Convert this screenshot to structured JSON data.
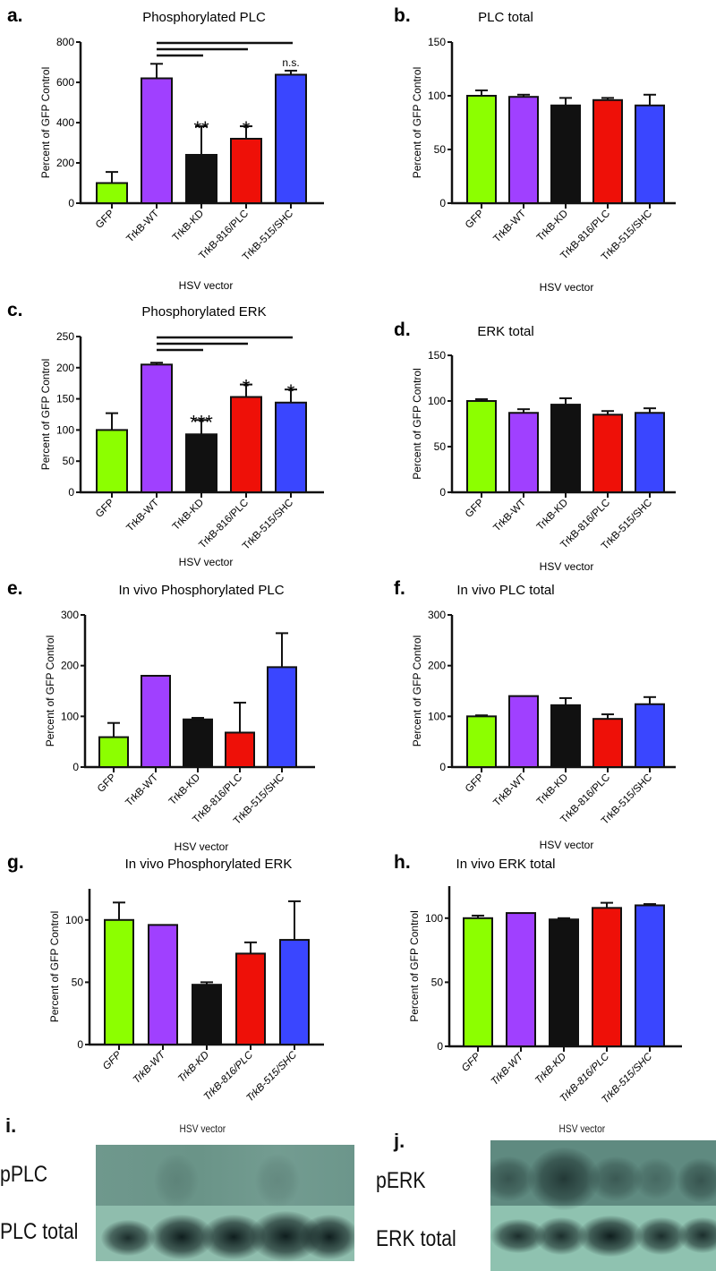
{
  "colors": {
    "GFP": "#8cff00",
    "TrkB-WT": "#a040ff",
    "TrkB-KD": "#111111",
    "TrkB-816/PLC": "#ee1008",
    "TrkB-515/SHC": "#3a46ff"
  },
  "chart_data": [
    {
      "id": "a",
      "panel_label": "a.",
      "type": "bar",
      "title": "Phosphorylated PLC",
      "xlabel": "HSV vector",
      "ylabel": "Percent of GFP Control",
      "categories": [
        "GFP",
        "TrkB-WT",
        "TrkB-KD",
        "TrkB-816/PLC",
        "TrkB-515/SHC"
      ],
      "values": [
        100,
        620,
        240,
        320,
        638
      ],
      "errors": [
        55,
        72,
        142,
        62,
        20
      ],
      "ylim": [
        0,
        800
      ],
      "yticks": [
        0,
        200,
        400,
        600,
        800
      ],
      "annotations": [
        "",
        "",
        "**",
        "*",
        "n.s."
      ],
      "comparison_lines": [
        {
          "from": "TrkB-WT",
          "to": "TrkB-KD"
        },
        {
          "from": "TrkB-WT",
          "to": "TrkB-816/PLC"
        },
        {
          "from": "TrkB-WT",
          "to": "TrkB-515/SHC"
        }
      ]
    },
    {
      "id": "b",
      "panel_label": "b.",
      "type": "bar",
      "title": "PLC total",
      "xlabel": "HSV vector",
      "ylabel": "Percent of GFP Control",
      "categories": [
        "GFP",
        "TrkB-WT",
        "TrkB-KD",
        "TrkB-816/PLC",
        "TrkB-515/SHC"
      ],
      "values": [
        100,
        99,
        91,
        96,
        91
      ],
      "errors": [
        5,
        2,
        7,
        2,
        10
      ],
      "ylim": [
        0,
        150
      ],
      "yticks": [
        0,
        50,
        100,
        150
      ]
    },
    {
      "id": "c",
      "panel_label": "c.",
      "type": "bar",
      "title": "Phosphorylated ERK",
      "xlabel": "HSV vector",
      "ylabel": "Percent of GFP Control",
      "categories": [
        "GFP",
        "TrkB-WT",
        "TrkB-KD",
        "TrkB-816/PLC",
        "TrkB-515/SHC"
      ],
      "values": [
        100,
        205,
        93,
        153,
        144
      ],
      "errors": [
        27,
        3,
        23,
        20,
        21
      ],
      "ylim": [
        0,
        250
      ],
      "yticks": [
        0,
        50,
        100,
        150,
        200,
        250
      ],
      "annotations": [
        "",
        "",
        "***",
        "*",
        "*"
      ],
      "comparison_lines": [
        {
          "from": "TrkB-WT",
          "to": "TrkB-KD"
        },
        {
          "from": "TrkB-WT",
          "to": "TrkB-816/PLC"
        },
        {
          "from": "TrkB-WT",
          "to": "TrkB-515/SHC"
        }
      ]
    },
    {
      "id": "d",
      "panel_label": "d.",
      "type": "bar",
      "title": "ERK total",
      "xlabel": "HSV vector",
      "ylabel": "Percent of GFP Control",
      "categories": [
        "GFP",
        "TrkB-WT",
        "TrkB-KD",
        "TrkB-816/PLC",
        "TrkB-515/SHC"
      ],
      "values": [
        100,
        87,
        96,
        85,
        87
      ],
      "errors": [
        2,
        4,
        7,
        4,
        5
      ],
      "ylim": [
        0,
        150
      ],
      "yticks": [
        0,
        50,
        100,
        150
      ]
    },
    {
      "id": "e",
      "panel_label": "e.",
      "type": "bar",
      "title": "In vivo Phosphorylated PLC",
      "xlabel": "HSV vector",
      "ylabel": "Percent of GFP Control",
      "categories": [
        "GFP",
        "TrkB-WT",
        "TrkB-KD",
        "TrkB-816/PLC",
        "TrkB-515/SHC"
      ],
      "values": [
        59,
        180,
        94,
        68,
        197
      ],
      "errors": [
        28,
        0,
        3,
        59,
        67
      ],
      "ylim": [
        0,
        300
      ],
      "yticks": [
        0,
        100,
        200,
        300
      ]
    },
    {
      "id": "f",
      "panel_label": "f.",
      "type": "bar",
      "title": "In vivo PLC total",
      "xlabel": "HSV vector",
      "ylabel": "Percent of GFP Control",
      "categories": [
        "GFP",
        "TrkB-WT",
        "TrkB-KD",
        "TrkB-816/PLC",
        "TrkB-515/SHC"
      ],
      "values": [
        100,
        140,
        122,
        95,
        124
      ],
      "errors": [
        2,
        0,
        14,
        9,
        14
      ],
      "ylim": [
        0,
        300
      ],
      "yticks": [
        0,
        100,
        200,
        300
      ]
    },
    {
      "id": "g",
      "panel_label": "g.",
      "type": "bar",
      "title": "In vivo Phosphorylated ERK",
      "xlabel": "HSV vector",
      "ylabel": "Percent of GFP Control",
      "categories": [
        "GFP",
        "TrkB-WT",
        "TrkB-KD",
        "TrkB-816/PLC",
        "TrkB-515/SHC"
      ],
      "values": [
        100,
        96,
        48,
        73,
        84
      ],
      "errors": [
        14,
        0,
        2,
        9,
        31
      ],
      "ylim": [
        0,
        125
      ],
      "yticks": [
        0,
        50,
        100
      ]
    },
    {
      "id": "h",
      "panel_label": "h.",
      "type": "bar",
      "title": "In vivo ERK total",
      "xlabel": "HSV vector",
      "ylabel": "Percent of GFP Control",
      "categories": [
        "GFP",
        "TrkB-WT",
        "TrkB-KD",
        "TrkB-816/PLC",
        "TrkB-515/SHC"
      ],
      "values": [
        100,
        104,
        99,
        108,
        110
      ],
      "errors": [
        2,
        0,
        1,
        4,
        1
      ],
      "ylim": [
        0,
        125
      ],
      "yticks": [
        0,
        50,
        100
      ]
    }
  ],
  "blots": {
    "i": {
      "panel_label": "i.",
      "title": "HSV vector",
      "rows": [
        "pPLC",
        "PLC total"
      ]
    },
    "j": {
      "panel_label": "j.",
      "title": "HSV vector",
      "rows": [
        "pERK",
        "ERK total"
      ]
    }
  }
}
